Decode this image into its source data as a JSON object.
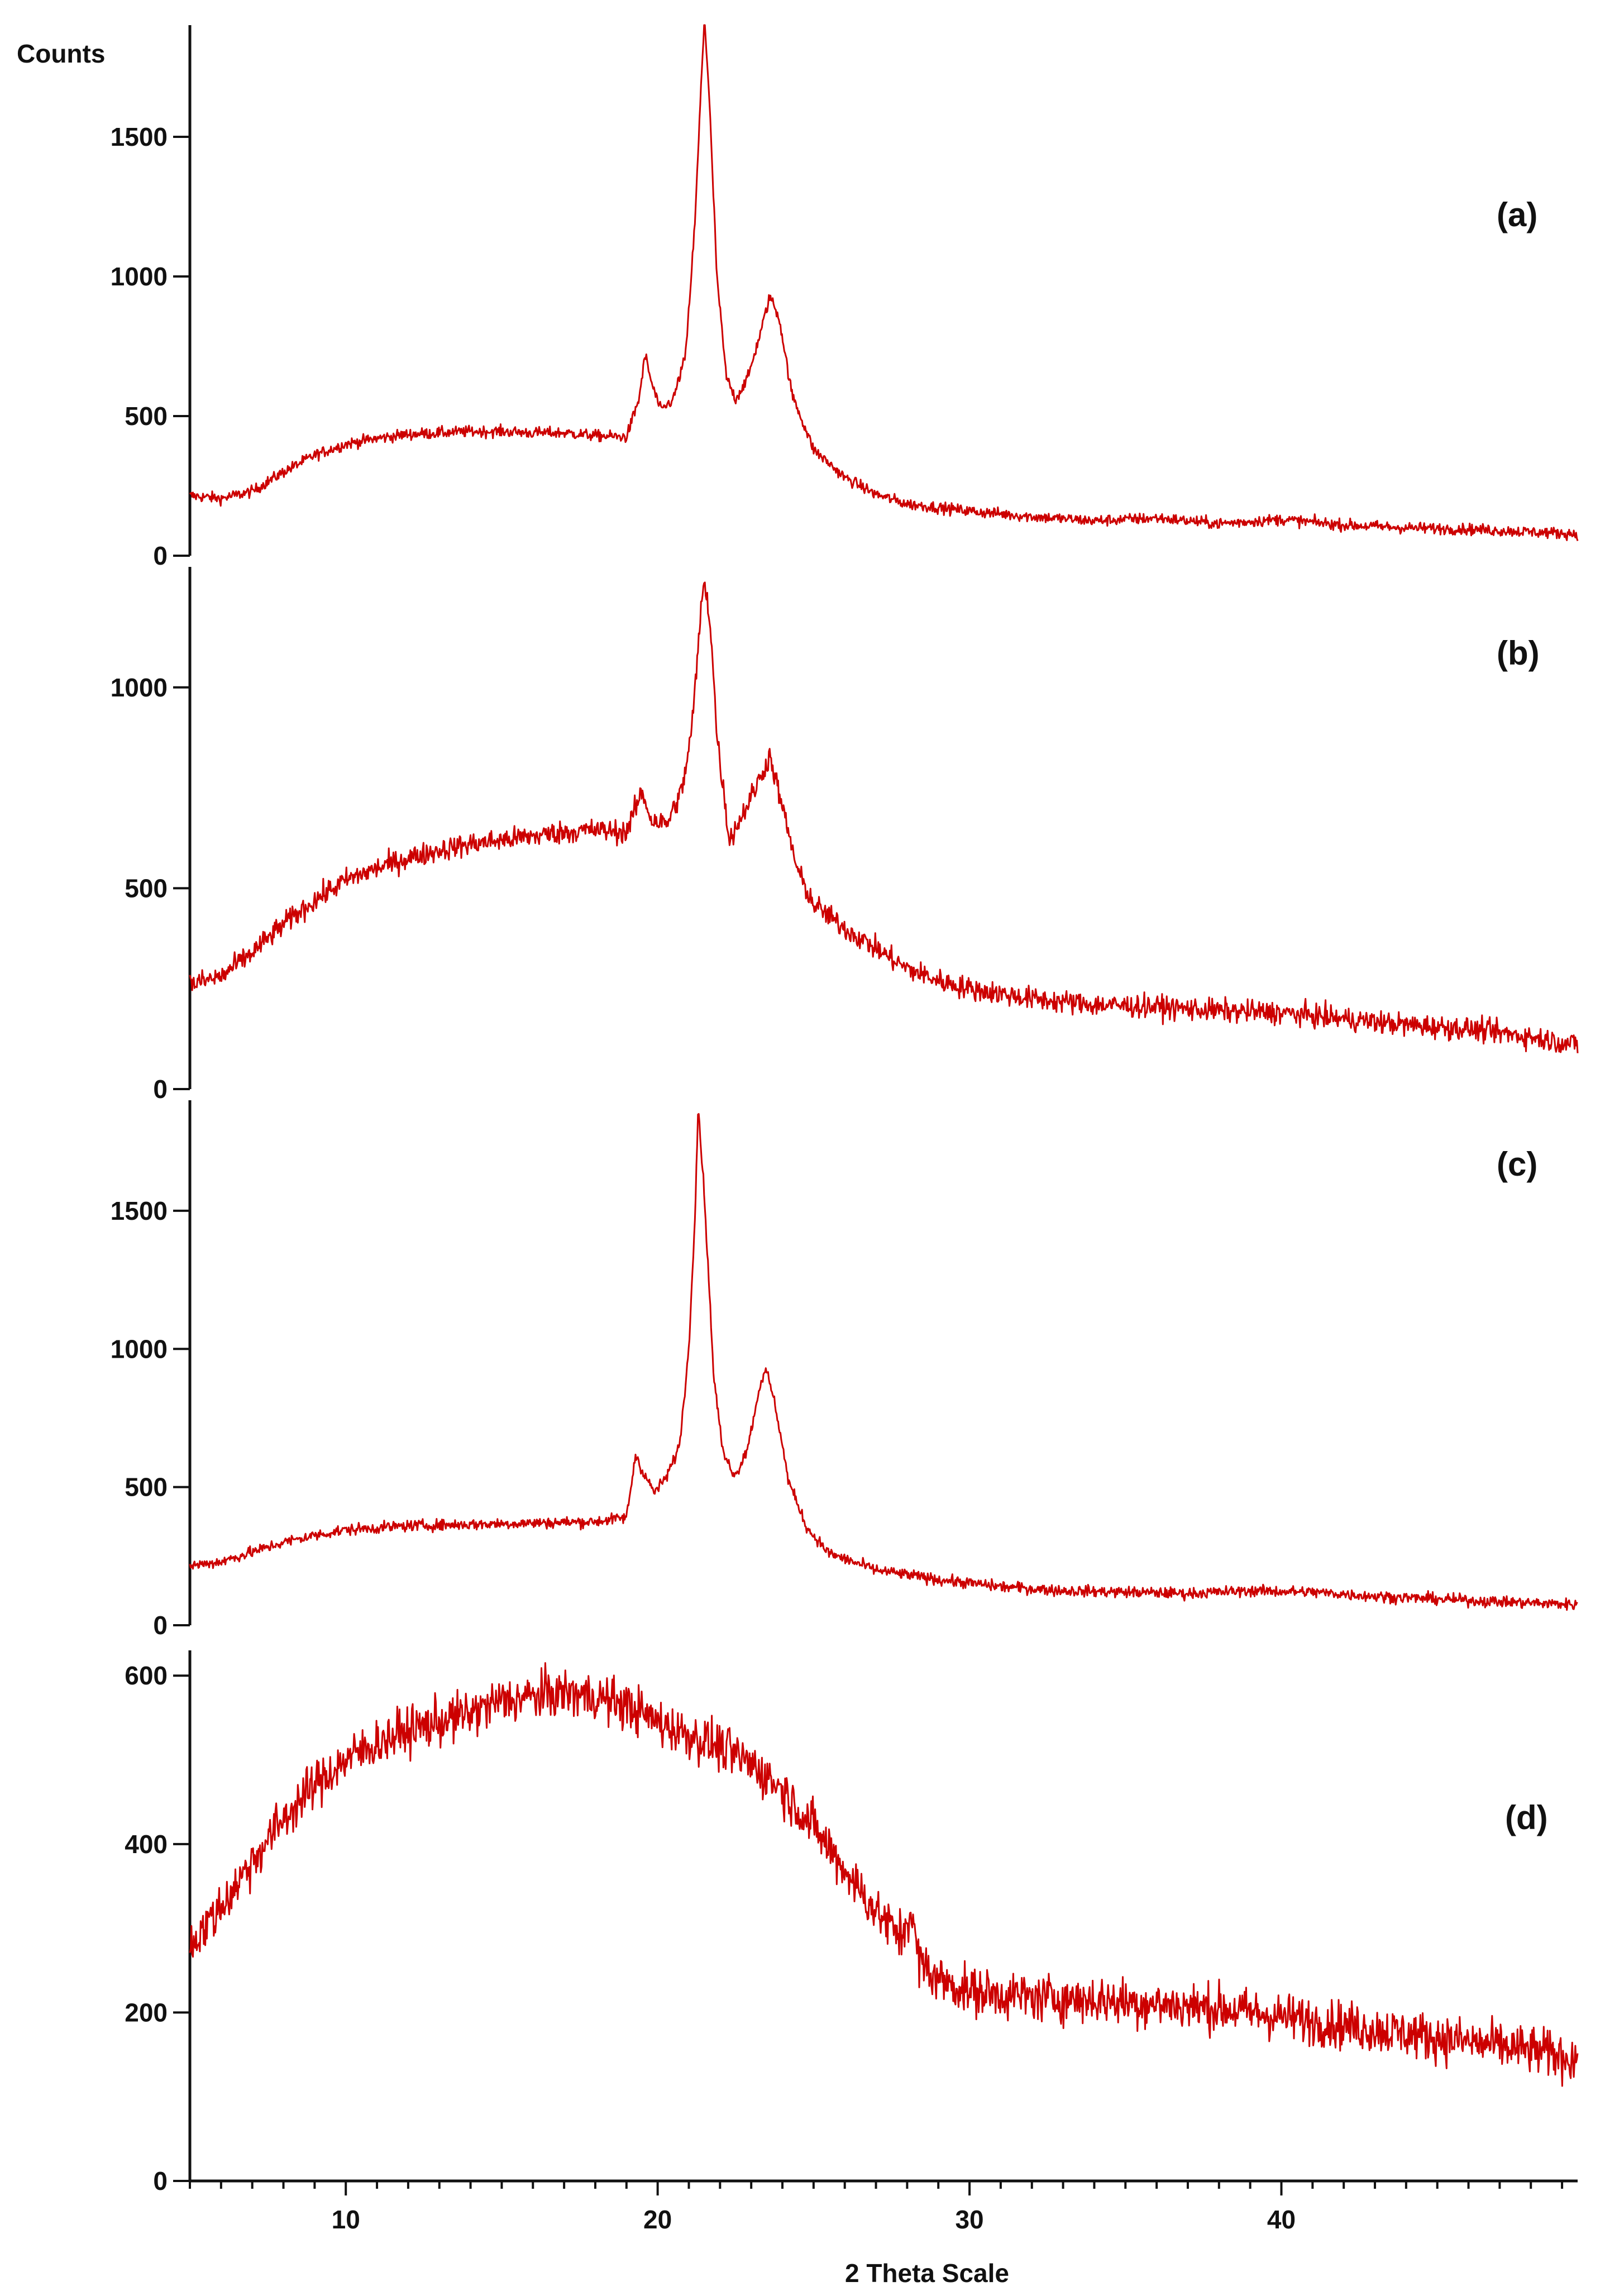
{
  "chart_data": {
    "type": "line",
    "color": "#cc0000",
    "x_axis": {
      "label": "2 Theta Scale",
      "range": [
        5,
        49.5
      ],
      "ticks": [
        10,
        20,
        30,
        40
      ]
    },
    "y_title": "Counts",
    "panels": [
      {
        "label": "(a)",
        "ylim": [
          0,
          1900
        ],
        "yticks": [
          0,
          500,
          1000,
          1500
        ],
        "noise": 20,
        "curve": [
          [
            5,
            215
          ],
          [
            6,
            205
          ],
          [
            7,
            230
          ],
          [
            8,
            300
          ],
          [
            9,
            360
          ],
          [
            10,
            400
          ],
          [
            11,
            420
          ],
          [
            12,
            435
          ],
          [
            13,
            440
          ],
          [
            14,
            445
          ],
          [
            15,
            445
          ],
          [
            16,
            440
          ],
          [
            17,
            440
          ],
          [
            18,
            430
          ],
          [
            19,
            425
          ],
          [
            19.4,
            560
          ],
          [
            19.6,
            720
          ],
          [
            19.8,
            620
          ],
          [
            20.1,
            520
          ],
          [
            20.5,
            560
          ],
          [
            20.9,
            720
          ],
          [
            21.2,
            1200
          ],
          [
            21.4,
            1700
          ],
          [
            21.5,
            1930
          ],
          [
            21.65,
            1650
          ],
          [
            21.9,
            1000
          ],
          [
            22.2,
            640
          ],
          [
            22.5,
            560
          ],
          [
            22.9,
            640
          ],
          [
            23.3,
            800
          ],
          [
            23.6,
            930
          ],
          [
            23.9,
            850
          ],
          [
            24.3,
            580
          ],
          [
            25,
            380
          ],
          [
            26,
            280
          ],
          [
            27,
            220
          ],
          [
            28,
            185
          ],
          [
            30,
            160
          ],
          [
            32,
            140
          ],
          [
            34,
            125
          ],
          [
            36,
            135
          ],
          [
            38,
            115
          ],
          [
            40,
            130
          ],
          [
            42,
            110
          ],
          [
            44,
            100
          ],
          [
            46,
            95
          ],
          [
            48,
            85
          ],
          [
            49.5,
            78
          ]
        ]
      },
      {
        "label": "(b)",
        "ylim": [
          0,
          1300
        ],
        "yticks": [
          0,
          500,
          1000
        ],
        "noise": 28,
        "curve": [
          [
            5,
            260
          ],
          [
            6,
            280
          ],
          [
            7,
            340
          ],
          [
            8,
            410
          ],
          [
            9,
            470
          ],
          [
            10,
            520
          ],
          [
            11,
            550
          ],
          [
            12,
            575
          ],
          [
            13,
            595
          ],
          [
            14,
            610
          ],
          [
            15,
            620
          ],
          [
            16,
            630
          ],
          [
            17,
            640
          ],
          [
            18,
            645
          ],
          [
            19,
            640
          ],
          [
            19.5,
            740
          ],
          [
            19.8,
            670
          ],
          [
            20.3,
            660
          ],
          [
            20.8,
            750
          ],
          [
            21.1,
            900
          ],
          [
            21.4,
            1200
          ],
          [
            21.5,
            1270
          ],
          [
            21.7,
            1150
          ],
          [
            21.9,
            880
          ],
          [
            22.3,
            620
          ],
          [
            22.7,
            680
          ],
          [
            23.2,
            760
          ],
          [
            23.6,
            830
          ],
          [
            24,
            700
          ],
          [
            24.5,
            540
          ],
          [
            25,
            460
          ],
          [
            26,
            400
          ],
          [
            27,
            350
          ],
          [
            28,
            300
          ],
          [
            29,
            270
          ],
          [
            30,
            250
          ],
          [
            32,
            225
          ],
          [
            34,
            210
          ],
          [
            36,
            205
          ],
          [
            38,
            195
          ],
          [
            40,
            190
          ],
          [
            42,
            175
          ],
          [
            44,
            160
          ],
          [
            46,
            150
          ],
          [
            48,
            130
          ],
          [
            49.5,
            110
          ]
        ]
      },
      {
        "label": "(c)",
        "ylim": [
          0,
          1900
        ],
        "yticks": [
          0,
          500,
          1000,
          1500
        ],
        "noise": 20,
        "curve": [
          [
            5,
            215
          ],
          [
            6,
            230
          ],
          [
            7,
            265
          ],
          [
            8,
            300
          ],
          [
            9,
            325
          ],
          [
            10,
            345
          ],
          [
            12,
            360
          ],
          [
            14,
            365
          ],
          [
            16,
            370
          ],
          [
            18,
            375
          ],
          [
            19,
            390
          ],
          [
            19.3,
            620
          ],
          [
            19.5,
            560
          ],
          [
            19.9,
            480
          ],
          [
            20.3,
            540
          ],
          [
            20.7,
            650
          ],
          [
            21,
            1000
          ],
          [
            21.2,
            1500
          ],
          [
            21.3,
            1880
          ],
          [
            21.5,
            1550
          ],
          [
            21.8,
            900
          ],
          [
            22.1,
            620
          ],
          [
            22.5,
            540
          ],
          [
            22.9,
            650
          ],
          [
            23.3,
            880
          ],
          [
            23.5,
            920
          ],
          [
            23.8,
            780
          ],
          [
            24.2,
            520
          ],
          [
            24.8,
            350
          ],
          [
            25.5,
            260
          ],
          [
            27,
            200
          ],
          [
            29,
            165
          ],
          [
            31,
            140
          ],
          [
            33,
            125
          ],
          [
            35,
            120
          ],
          [
            37,
            115
          ],
          [
            39,
            125
          ],
          [
            41,
            120
          ],
          [
            43,
            105
          ],
          [
            45,
            95
          ],
          [
            47,
            85
          ],
          [
            49.5,
            75
          ]
        ]
      },
      {
        "label": "(d)",
        "ylim": [
          0,
          630
        ],
        "yticks": [
          0,
          200,
          400,
          600
        ],
        "noise": 28,
        "curve": [
          [
            5,
            280
          ],
          [
            6,
            325
          ],
          [
            7,
            380
          ],
          [
            8,
            430
          ],
          [
            9,
            470
          ],
          [
            10,
            500
          ],
          [
            11,
            520
          ],
          [
            12,
            535
          ],
          [
            13,
            545
          ],
          [
            14,
            555
          ],
          [
            15,
            570
          ],
          [
            16,
            575
          ],
          [
            17,
            580
          ],
          [
            18,
            575
          ],
          [
            19,
            565
          ],
          [
            20,
            545
          ],
          [
            21,
            530
          ],
          [
            22,
            515
          ],
          [
            23,
            495
          ],
          [
            24,
            465
          ],
          [
            25,
            420
          ],
          [
            26,
            370
          ],
          [
            27,
            320
          ],
          [
            27.8,
            290
          ],
          [
            28.1,
            320
          ],
          [
            28.4,
            260
          ],
          [
            29,
            240
          ],
          [
            30,
            225
          ],
          [
            32,
            218
          ],
          [
            34,
            215
          ],
          [
            36,
            210
          ],
          [
            38,
            205
          ],
          [
            40,
            195
          ],
          [
            42,
            185
          ],
          [
            44,
            175
          ],
          [
            46,
            165
          ],
          [
            48,
            155
          ],
          [
            49.5,
            145
          ]
        ]
      }
    ]
  }
}
